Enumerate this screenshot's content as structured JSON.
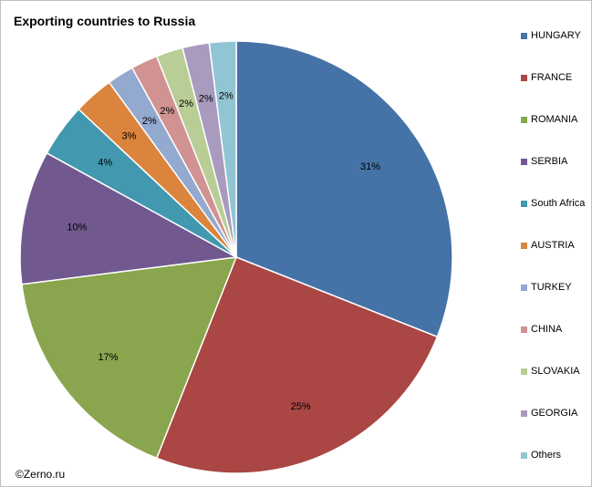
{
  "chart_data": {
    "type": "pie",
    "title": "Exporting countries to Russia",
    "categories": [
      "HUNGARY",
      "FRANCE",
      "ROMANIA",
      "SERBIA",
      "South Africa",
      "AUSTRIA",
      "TURKEY",
      "CHINA",
      "SLOVAKIA",
      "GEORGIA",
      "Others"
    ],
    "values": [
      31,
      25,
      17,
      10,
      4,
      3,
      2,
      2,
      2,
      2,
      2
    ],
    "data_labels": [
      "31%",
      "25%",
      "17%",
      "10%",
      "4%",
      "3%",
      "2%",
      "2%",
      "2%",
      "2%",
      "2%"
    ],
    "colors": [
      "#4572A7",
      "#AA4643",
      "#89A54E",
      "#71588F",
      "#4198AF",
      "#DB843D",
      "#93A9CF",
      "#D19392",
      "#B9CD96",
      "#A99BBD",
      "#92C5D4"
    ],
    "legend_position": "right"
  },
  "footer": {
    "copyright": "©Zerno.ru"
  }
}
